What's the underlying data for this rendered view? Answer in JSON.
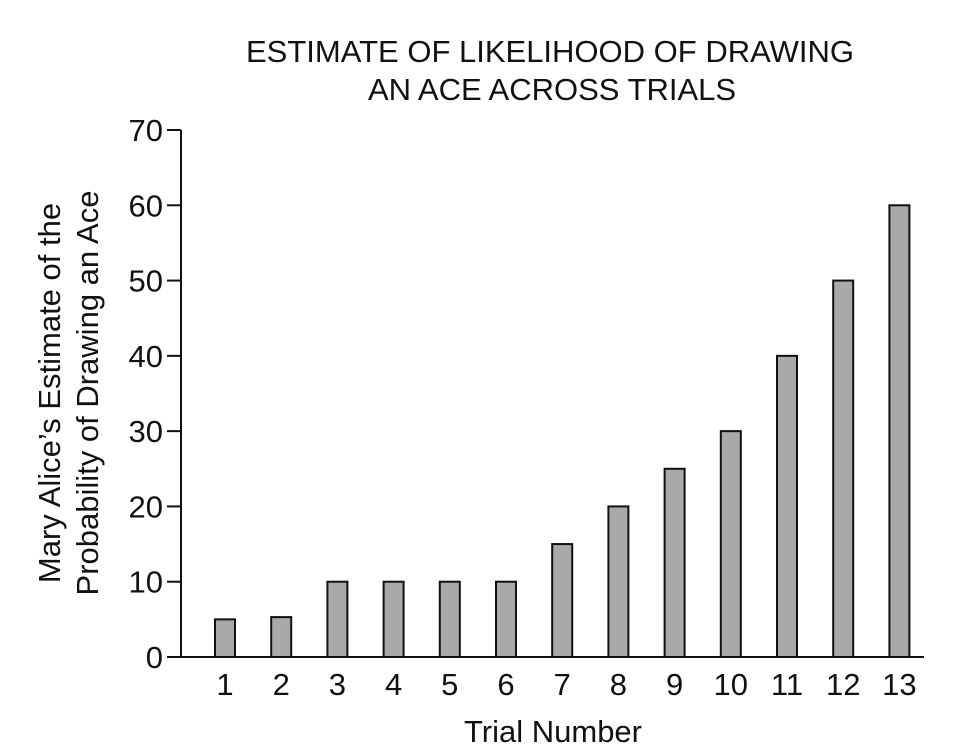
{
  "chart_data": {
    "type": "bar",
    "title_lines": [
      "ESTIMATE OF LIKELIHOOD OF DRAWING",
      "AN ACE ACROSS TRIALS"
    ],
    "xlabel": "Trial Number",
    "ylabel_lines": [
      "Mary Alice’s Estimate of the",
      "Probability of Drawing an Ace"
    ],
    "categories": [
      "1",
      "2",
      "3",
      "4",
      "5",
      "6",
      "7",
      "8",
      "9",
      "10",
      "11",
      "12",
      "13"
    ],
    "values": [
      5,
      5.3,
      10,
      10,
      10,
      10,
      15,
      20,
      25,
      30,
      40,
      50,
      60
    ],
    "ylim": [
      0,
      70
    ],
    "yticks": [
      0,
      10,
      20,
      30,
      40,
      50,
      60,
      70
    ],
    "grid": false,
    "legend": "none",
    "colors": {
      "bar_fill": "#a9a9a9",
      "bar_stroke": "#111111",
      "axis": "#111111",
      "text": "#111111"
    }
  }
}
